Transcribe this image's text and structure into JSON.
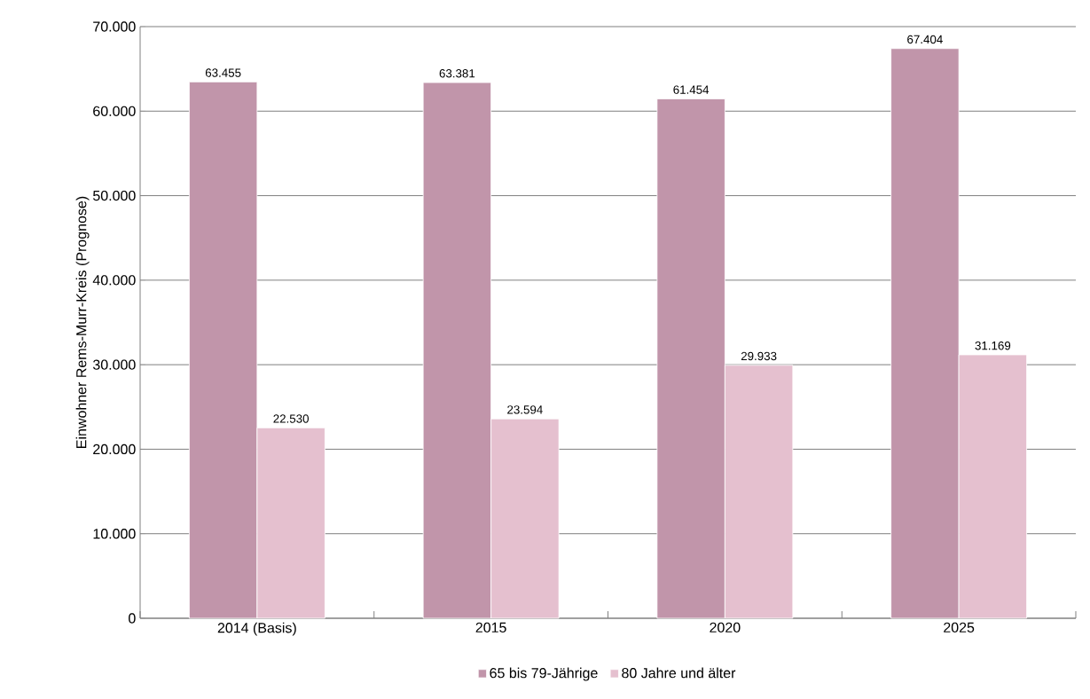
{
  "chart_data": {
    "type": "bar",
    "ylabel": "Einwohner Rems-Murr-Kreis (Prognose)",
    "categories": [
      "2014 (Basis)",
      "2015",
      "2020",
      "2025"
    ],
    "series": [
      {
        "name": "65 bis 79-Jährige",
        "color": "#c195aa",
        "values": [
          63455,
          63381,
          61454,
          67404
        ],
        "value_labels": [
          "63.455",
          "63.381",
          "61.454",
          "67.404"
        ]
      },
      {
        "name": "80 Jahre und älter",
        "color": "#e5c0cf",
        "values": [
          22530,
          23594,
          29933,
          31169
        ],
        "value_labels": [
          "22.530",
          "23.594",
          "29.933",
          "31.169"
        ]
      }
    ],
    "ylim": [
      0,
      70000
    ],
    "yticks": [
      0,
      {
        "value": 10000,
        "label": "10.000"
      },
      {
        "value": 20000,
        "label": "20.000"
      },
      {
        "value": 30000,
        "label": "30.000"
      },
      {
        "value": 40000,
        "label": "40.000"
      },
      {
        "value": 50000,
        "label": "50.000"
      },
      {
        "value": 60000,
        "label": "60.000"
      },
      {
        "value": 70000,
        "label": "70.000"
      }
    ],
    "grid": "y",
    "legend": "bottom"
  }
}
